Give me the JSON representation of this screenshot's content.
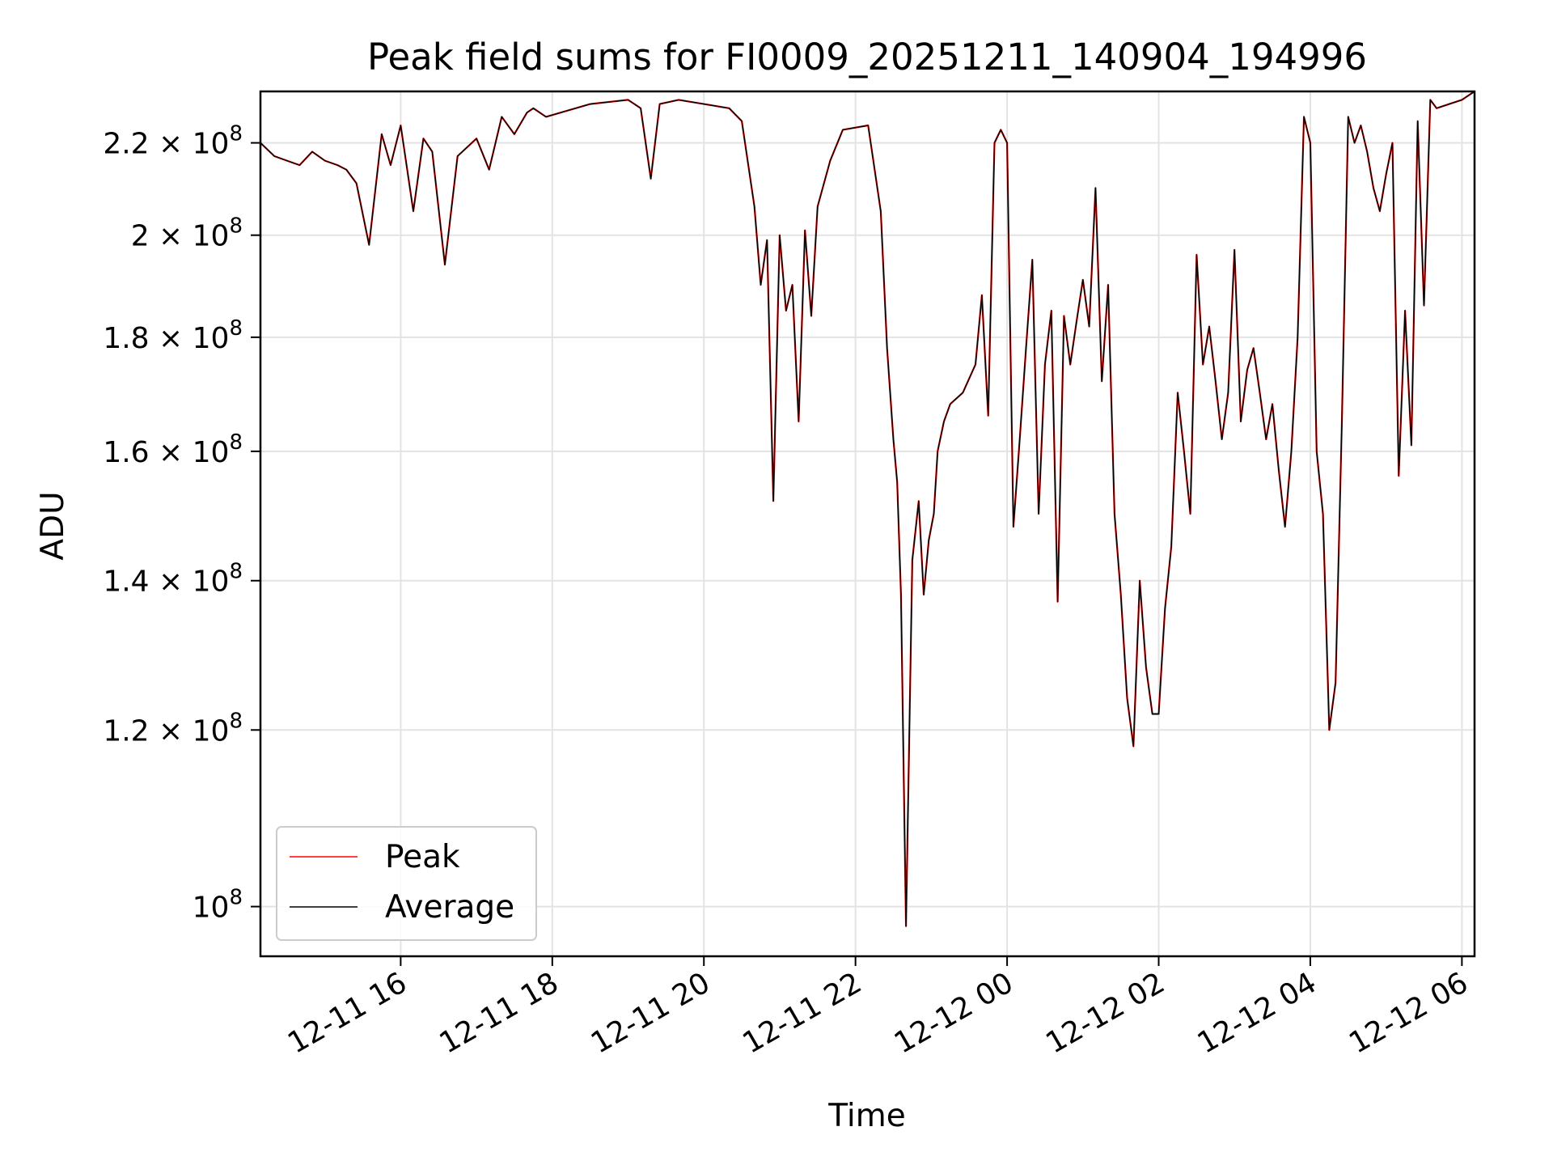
{
  "chart_data": {
    "type": "line",
    "title": "Peak field sums for FI0009_20251211_140904_194996",
    "xlabel": "Time",
    "ylabel": "ADU",
    "x_scale": "time",
    "y_scale": "log",
    "xlim": [
      "2025-12-11 14:09",
      "2025-12-12 06:10"
    ],
    "ylim": [
      95000000,
      232000000
    ],
    "grid": true,
    "legend_position": "lower-left",
    "x_ticks": [
      {
        "label": "12-11 16",
        "value": "2025-12-11 16:00"
      },
      {
        "label": "12-11 18",
        "value": "2025-12-11 18:00"
      },
      {
        "label": "12-11 20",
        "value": "2025-12-11 20:00"
      },
      {
        "label": "12-11 22",
        "value": "2025-12-11 22:00"
      },
      {
        "label": "12-12 00",
        "value": "2025-12-12 00:00"
      },
      {
        "label": "12-12 02",
        "value": "2025-12-12 02:00"
      },
      {
        "label": "12-12 04",
        "value": "2025-12-12 04:00"
      },
      {
        "label": "12-12 06",
        "value": "2025-12-12 06:00"
      }
    ],
    "y_ticks": [
      {
        "mantissa": "",
        "exp": "8",
        "value": 100000000
      },
      {
        "mantissa": "1.2",
        "exp": "8",
        "value": 120000000
      },
      {
        "mantissa": "1.4",
        "exp": "8",
        "value": 140000000
      },
      {
        "mantissa": "1.6",
        "exp": "8",
        "value": 160000000
      },
      {
        "mantissa": "1.8",
        "exp": "8",
        "value": 180000000
      },
      {
        "mantissa": "2",
        "exp": "8",
        "value": 200000000
      },
      {
        "mantissa": "2.2",
        "exp": "8",
        "value": 220000000
      }
    ],
    "series": [
      {
        "name": "Peak",
        "color": "#ff0000",
        "x": [
          "2025-12-11 14:09",
          "2025-12-11 14:20",
          "2025-12-11 14:30",
          "2025-12-11 14:40",
          "2025-12-11 14:50",
          "2025-12-11 15:00",
          "2025-12-11 15:10",
          "2025-12-11 15:17",
          "2025-12-11 15:25",
          "2025-12-11 15:35",
          "2025-12-11 15:45",
          "2025-12-11 15:52",
          "2025-12-11 16:00",
          "2025-12-11 16:10",
          "2025-12-11 16:18",
          "2025-12-11 16:25",
          "2025-12-11 16:35",
          "2025-12-11 16:45",
          "2025-12-11 17:00",
          "2025-12-11 17:10",
          "2025-12-11 17:20",
          "2025-12-11 17:30",
          "2025-12-11 17:40",
          "2025-12-11 17:45",
          "2025-12-11 17:55",
          "2025-12-11 18:30",
          "2025-12-11 19:00",
          "2025-12-11 19:10",
          "2025-12-11 19:18",
          "2025-12-11 19:25",
          "2025-12-11 19:40",
          "2025-12-11 20:00",
          "2025-12-11 20:20",
          "2025-12-11 20:30",
          "2025-12-11 20:40",
          "2025-12-11 20:45",
          "2025-12-11 20:50",
          "2025-12-11 20:55",
          "2025-12-11 21:00",
          "2025-12-11 21:05",
          "2025-12-11 21:10",
          "2025-12-11 21:15",
          "2025-12-11 21:20",
          "2025-12-11 21:25",
          "2025-12-11 21:30",
          "2025-12-11 21:40",
          "2025-12-11 21:50",
          "2025-12-11 22:10",
          "2025-12-11 22:20",
          "2025-12-11 22:25",
          "2025-12-11 22:30",
          "2025-12-11 22:33",
          "2025-12-11 22:36",
          "2025-12-11 22:40",
          "2025-12-11 22:45",
          "2025-12-11 22:50",
          "2025-12-11 22:54",
          "2025-12-11 22:58",
          "2025-12-11 23:02",
          "2025-12-11 23:05",
          "2025-12-11 23:10",
          "2025-12-11 23:15",
          "2025-12-11 23:25",
          "2025-12-11 23:35",
          "2025-12-11 23:40",
          "2025-12-11 23:45",
          "2025-12-11 23:50",
          "2025-12-11 23:55",
          "2025-12-12 00:00",
          "2025-12-12 00:05",
          "2025-12-12 00:10",
          "2025-12-12 00:15",
          "2025-12-12 00:20",
          "2025-12-12 00:25",
          "2025-12-12 00:30",
          "2025-12-12 00:35",
          "2025-12-12 00:40",
          "2025-12-12 00:45",
          "2025-12-12 00:50",
          "2025-12-12 00:55",
          "2025-12-12 01:00",
          "2025-12-12 01:05",
          "2025-12-12 01:10",
          "2025-12-12 01:15",
          "2025-12-12 01:20",
          "2025-12-12 01:25",
          "2025-12-12 01:30",
          "2025-12-12 01:35",
          "2025-12-12 01:40",
          "2025-12-12 01:45",
          "2025-12-12 01:50",
          "2025-12-12 01:55",
          "2025-12-12 02:00",
          "2025-12-12 02:05",
          "2025-12-12 02:10",
          "2025-12-12 02:15",
          "2025-12-12 02:20",
          "2025-12-12 02:25",
          "2025-12-12 02:30",
          "2025-12-12 02:35",
          "2025-12-12 02:40",
          "2025-12-12 02:45",
          "2025-12-12 02:50",
          "2025-12-12 02:55",
          "2025-12-12 03:00",
          "2025-12-12 03:05",
          "2025-12-12 03:10",
          "2025-12-12 03:15",
          "2025-12-12 03:20",
          "2025-12-12 03:25",
          "2025-12-12 03:30",
          "2025-12-12 03:35",
          "2025-12-12 03:40",
          "2025-12-12 03:45",
          "2025-12-12 03:50",
          "2025-12-12 03:55",
          "2025-12-12 04:00",
          "2025-12-12 04:05",
          "2025-12-12 04:10",
          "2025-12-12 04:15",
          "2025-12-12 04:20",
          "2025-12-12 04:25",
          "2025-12-12 04:30",
          "2025-12-12 04:35",
          "2025-12-12 04:40",
          "2025-12-12 04:45",
          "2025-12-12 04:50",
          "2025-12-12 04:55",
          "2025-12-12 05:00",
          "2025-12-12 05:05",
          "2025-12-12 05:10",
          "2025-12-12 05:15",
          "2025-12-12 05:20",
          "2025-12-12 05:25",
          "2025-12-12 05:30",
          "2025-12-12 05:35",
          "2025-12-12 05:40",
          "2025-12-12 05:50",
          "2025-12-12 06:00",
          "2025-12-12 06:05",
          "2025-12-12 06:10"
        ],
        "values": [
          220000000,
          217000000,
          216000000,
          215000000,
          218000000,
          216000000,
          215000000,
          214000000,
          211000000,
          198000000,
          222000000,
          215000000,
          224000000,
          205000000,
          221000000,
          218000000,
          194000000,
          217000000,
          221000000,
          214000000,
          226000000,
          222000000,
          227000000,
          228000000,
          226000000,
          229000000,
          230000000,
          228000000,
          212000000,
          229000000,
          230000000,
          229000000,
          228000000,
          225000000,
          206000000,
          190000000,
          199000000,
          152000000,
          200000000,
          185000000,
          190000000,
          165000000,
          201000000,
          184000000,
          206000000,
          216000000,
          223000000,
          224000000,
          205000000,
          178000000,
          162000000,
          155000000,
          138000000,
          98000000,
          143000000,
          152000000,
          138000000,
          146000000,
          150000000,
          160000000,
          165000000,
          168000000,
          170000000,
          175000000,
          188000000,
          166000000,
          220000000,
          223000000,
          220000000,
          148000000,
          162000000,
          178000000,
          195000000,
          150000000,
          175000000,
          185000000,
          137000000,
          184000000,
          175000000,
          183000000,
          191000000,
          182000000,
          210000000,
          172000000,
          190000000,
          150000000,
          138000000,
          124000000,
          118000000,
          140000000,
          128000000,
          122000000,
          122000000,
          136000000,
          145000000,
          170000000,
          160000000,
          150000000,
          196000000,
          175000000,
          182000000,
          172000000,
          162000000,
          170000000,
          197000000,
          165000000,
          174000000,
          178000000,
          170000000,
          162000000,
          168000000,
          157000000,
          148000000,
          160000000,
          180000000,
          226000000,
          220000000,
          160000000,
          150000000,
          120000000,
          126000000,
          165000000,
          226000000,
          220000000,
          224000000,
          218000000,
          210000000,
          205000000,
          213000000,
          220000000,
          156000000,
          185000000,
          161000000,
          225000000,
          186000000,
          230000000,
          228000000,
          229000000,
          230000000,
          231000000,
          232000000
        ],
        "note_overlap": "Peak and Average traces overlap almost everywhere"
      },
      {
        "name": "Average",
        "color": "#000000"
      }
    ]
  }
}
